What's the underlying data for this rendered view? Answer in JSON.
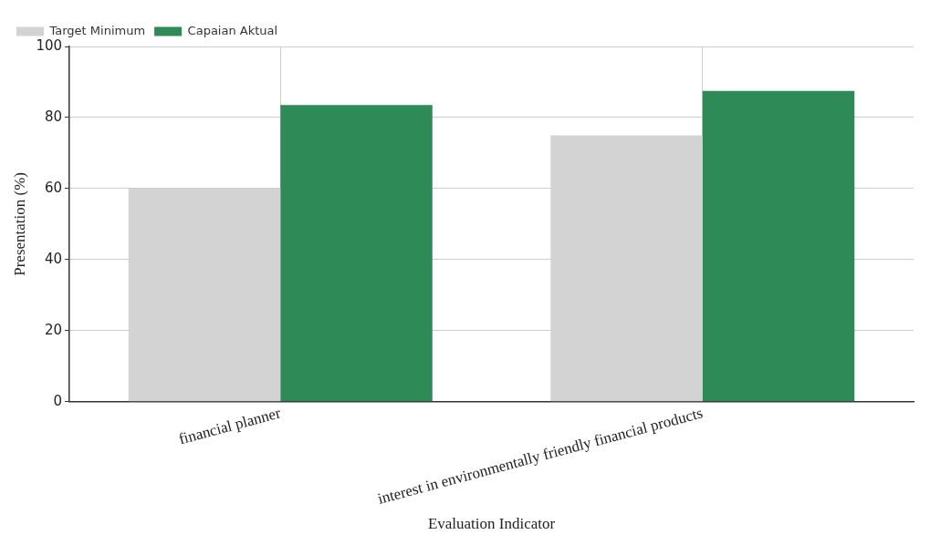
{
  "chart_data": {
    "type": "bar",
    "categories": [
      "financial planner",
      "interest in environmentally friendly financial products"
    ],
    "series": [
      {
        "name": "Target Minimum",
        "color": "#d3d3d3",
        "values": [
          60,
          75
        ]
      },
      {
        "name": "Capaian Aktual",
        "color": "#2e8b57",
        "values": [
          83.5,
          87.5
        ]
      }
    ],
    "xlabel": "Evaluation Indicator",
    "ylabel": "Presentation (%)",
    "ylim": [
      0,
      100
    ],
    "yticks": [
      0,
      20,
      40,
      60,
      80,
      100
    ],
    "grid": true,
    "legend": "top left"
  }
}
